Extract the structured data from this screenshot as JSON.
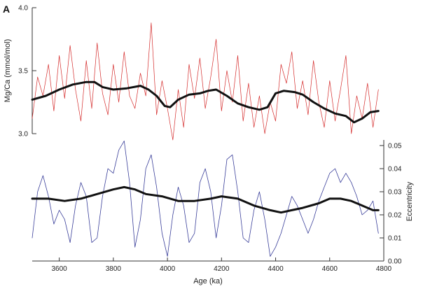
{
  "panel_label": "A",
  "colors": {
    "mgca": "#d42a2a",
    "eccentricity": "#3a3f9a",
    "smooth": "#111111",
    "axis": "#333333"
  },
  "chart_data": {
    "type": "line",
    "title": "",
    "xlabel": "Age (ka)",
    "ylabel_left": "Mg/Ca (mmol/mol)",
    "ylabel_right": "Eccentricity",
    "xlim": [
      3500,
      4800
    ],
    "x_ticks": [
      "3600",
      "3800",
      "4000",
      "4200",
      "4400",
      "4600",
      "4800"
    ],
    "left_ylim": [
      3.0,
      4.0
    ],
    "left_ticks": [
      "3.0",
      "3.5",
      "4.0"
    ],
    "right_ylim": [
      0.0,
      0.05
    ],
    "right_ticks": [
      "0.00",
      "0.01",
      "0.02",
      "0.03",
      "0.04",
      "0.05"
    ],
    "grid": false,
    "series": [
      {
        "axis": "left",
        "style": "thin-noisy",
        "x": [
          3500,
          3520,
          3540,
          3560,
          3580,
          3600,
          3620,
          3640,
          3660,
          3680,
          3700,
          3720,
          3740,
          3760,
          3780,
          3800,
          3820,
          3840,
          3860,
          3880,
          3900,
          3920,
          3940,
          3960,
          3980,
          4000,
          4020,
          4040,
          4060,
          4080,
          4100,
          4120,
          4140,
          4160,
          4180,
          4200,
          4220,
          4240,
          4260,
          4280,
          4300,
          4320,
          4340,
          4360,
          4380,
          4400,
          4420,
          4440,
          4460,
          4480,
          4500,
          4520,
          4540,
          4560,
          4580,
          4600,
          4620,
          4640,
          4660,
          4680,
          4700,
          4720,
          4740,
          4760,
          4780
        ],
        "values": [
          3.12,
          3.45,
          3.3,
          3.55,
          3.18,
          3.62,
          3.28,
          3.7,
          3.35,
          3.1,
          3.58,
          3.2,
          3.72,
          3.32,
          3.15,
          3.55,
          3.25,
          3.65,
          3.3,
          3.2,
          3.48,
          3.3,
          3.88,
          3.15,
          3.42,
          3.2,
          2.95,
          3.35,
          3.05,
          3.55,
          3.28,
          3.6,
          3.2,
          3.45,
          3.75,
          3.18,
          3.5,
          3.25,
          3.62,
          3.1,
          3.4,
          3.05,
          3.3,
          3.0,
          3.25,
          3.1,
          3.55,
          3.4,
          3.65,
          3.2,
          3.42,
          3.15,
          3.58,
          3.25,
          3.05,
          3.42,
          3.1,
          3.35,
          3.62,
          3.0,
          3.3,
          3.12,
          3.4,
          3.05,
          3.35
        ]
      },
      {
        "axis": "left",
        "style": "thick-smooth",
        "x": [
          3500,
          3550,
          3600,
          3650,
          3700,
          3730,
          3760,
          3800,
          3850,
          3900,
          3930,
          3960,
          3990,
          4010,
          4040,
          4080,
          4120,
          4150,
          4180,
          4220,
          4260,
          4300,
          4340,
          4370,
          4400,
          4430,
          4470,
          4500,
          4540,
          4580,
          4620,
          4660,
          4690,
          4720,
          4750,
          4780
        ],
        "values": [
          3.27,
          3.3,
          3.35,
          3.39,
          3.41,
          3.41,
          3.37,
          3.35,
          3.36,
          3.38,
          3.35,
          3.3,
          3.22,
          3.21,
          3.27,
          3.31,
          3.32,
          3.34,
          3.35,
          3.3,
          3.24,
          3.21,
          3.19,
          3.21,
          3.32,
          3.34,
          3.33,
          3.31,
          3.25,
          3.2,
          3.16,
          3.14,
          3.09,
          3.12,
          3.17,
          3.18
        ]
      },
      {
        "axis": "right",
        "style": "thin-wave",
        "x": [
          3500,
          3520,
          3540,
          3560,
          3580,
          3600,
          3620,
          3640,
          3660,
          3680,
          3700,
          3720,
          3740,
          3760,
          3780,
          3800,
          3820,
          3840,
          3860,
          3880,
          3900,
          3920,
          3940,
          3960,
          3980,
          4000,
          4020,
          4040,
          4060,
          4080,
          4100,
          4120,
          4140,
          4160,
          4180,
          4200,
          4220,
          4240,
          4260,
          4280,
          4300,
          4320,
          4340,
          4360,
          4380,
          4400,
          4420,
          4440,
          4460,
          4480,
          4500,
          4520,
          4540,
          4560,
          4580,
          4600,
          4620,
          4640,
          4660,
          4680,
          4700,
          4720,
          4740,
          4760,
          4780
        ],
        "values": [
          0.01,
          0.03,
          0.037,
          0.028,
          0.016,
          0.022,
          0.018,
          0.008,
          0.024,
          0.034,
          0.028,
          0.008,
          0.01,
          0.028,
          0.04,
          0.038,
          0.048,
          0.052,
          0.034,
          0.006,
          0.018,
          0.04,
          0.046,
          0.032,
          0.012,
          0.002,
          0.02,
          0.032,
          0.024,
          0.008,
          0.012,
          0.034,
          0.04,
          0.03,
          0.01,
          0.024,
          0.044,
          0.046,
          0.03,
          0.01,
          0.008,
          0.022,
          0.03,
          0.018,
          0.002,
          0.006,
          0.012,
          0.02,
          0.028,
          0.024,
          0.018,
          0.012,
          0.018,
          0.026,
          0.032,
          0.038,
          0.04,
          0.034,
          0.038,
          0.034,
          0.028,
          0.02,
          0.022,
          0.026,
          0.012
        ]
      },
      {
        "axis": "right",
        "style": "thick-smooth",
        "x": [
          3500,
          3560,
          3620,
          3680,
          3740,
          3800,
          3840,
          3880,
          3920,
          3980,
          4040,
          4100,
          4160,
          4200,
          4260,
          4320,
          4380,
          4420,
          4460,
          4500,
          4560,
          4600,
          4640,
          4680,
          4720,
          4760,
          4780
        ],
        "values": [
          0.027,
          0.027,
          0.026,
          0.027,
          0.029,
          0.031,
          0.032,
          0.031,
          0.029,
          0.028,
          0.026,
          0.026,
          0.027,
          0.028,
          0.027,
          0.024,
          0.022,
          0.021,
          0.022,
          0.023,
          0.025,
          0.027,
          0.027,
          0.026,
          0.024,
          0.022,
          0.022
        ]
      }
    ]
  }
}
